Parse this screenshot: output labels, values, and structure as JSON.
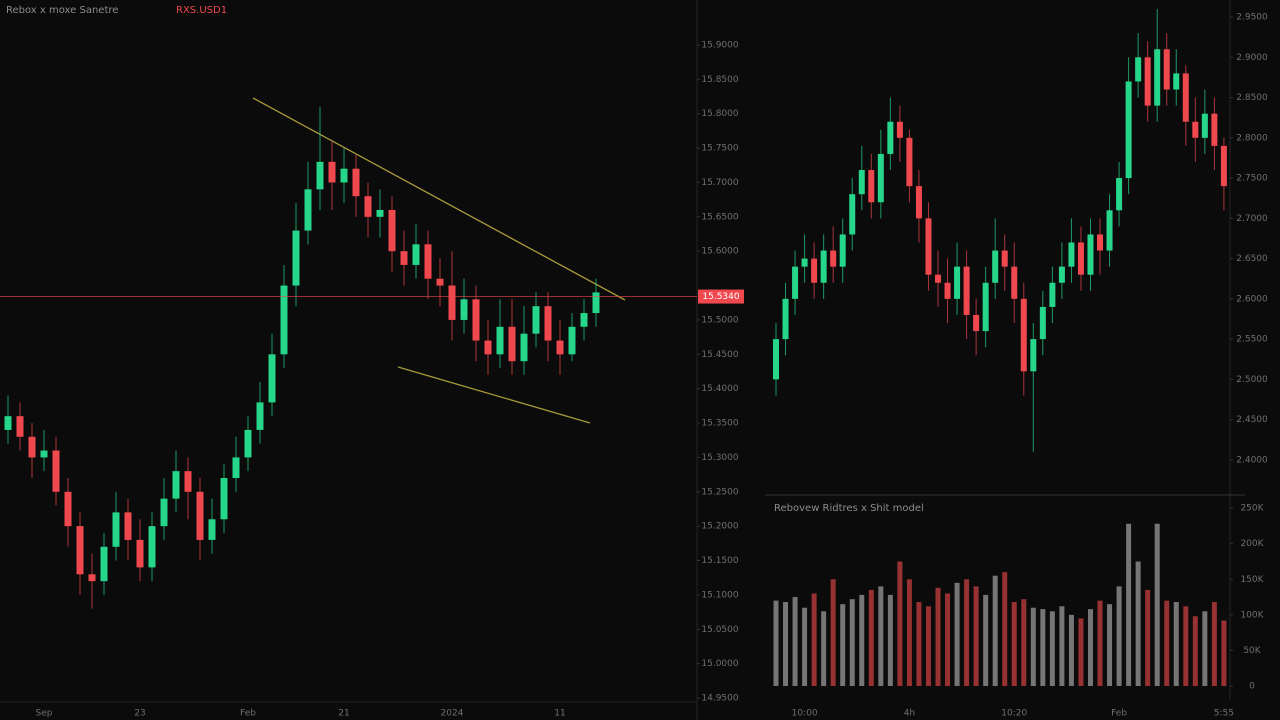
{
  "chart_data": [
    {
      "type": "candlestick",
      "title": "Rebox x moxe Sanetre",
      "symbol": "RXS.USD1",
      "up_color": "#26d68a",
      "down_color": "#f0484f",
      "grid": false,
      "categories": [
        null,
        null,
        null,
        "Sep",
        null,
        null,
        null,
        null,
        null,
        null,
        null,
        "23",
        null,
        null,
        null,
        null,
        null,
        null,
        null,
        null,
        "Feb",
        null,
        null,
        null,
        null,
        null,
        null,
        null,
        "21",
        null,
        null,
        null,
        null,
        null,
        null,
        null,
        null,
        "2024",
        null,
        null,
        null,
        null,
        null,
        null,
        null,
        null,
        "11",
        null,
        null,
        null
      ],
      "open": [
        15.34,
        15.36,
        15.33,
        15.3,
        15.31,
        15.25,
        15.2,
        15.13,
        15.12,
        15.17,
        15.22,
        15.18,
        15.14,
        15.2,
        15.24,
        15.28,
        15.25,
        15.18,
        15.21,
        15.27,
        15.3,
        15.34,
        15.38,
        15.45,
        15.55,
        15.63,
        15.69,
        15.73,
        15.7,
        15.72,
        15.68,
        15.65,
        15.66,
        15.6,
        15.58,
        15.61,
        15.56,
        15.55,
        15.5,
        15.53,
        15.47,
        15.45,
        15.49,
        15.44,
        15.48,
        15.52,
        15.47,
        15.45,
        15.49,
        15.51
      ],
      "high": [
        15.39,
        15.38,
        15.35,
        15.34,
        15.33,
        15.27,
        15.22,
        15.16,
        15.19,
        15.25,
        15.24,
        15.21,
        15.22,
        15.27,
        15.31,
        15.3,
        15.27,
        15.24,
        15.29,
        15.33,
        15.36,
        15.41,
        15.48,
        15.58,
        15.67,
        15.73,
        15.81,
        15.76,
        15.75,
        15.74,
        15.7,
        15.69,
        15.68,
        15.63,
        15.64,
        15.63,
        15.59,
        15.6,
        15.56,
        15.55,
        15.5,
        15.53,
        15.53,
        15.52,
        15.54,
        15.54,
        15.5,
        15.51,
        15.53,
        15.56
      ],
      "low": [
        15.32,
        15.31,
        15.27,
        15.28,
        15.23,
        15.17,
        15.1,
        15.08,
        15.1,
        15.15,
        15.15,
        15.12,
        15.12,
        15.18,
        15.22,
        15.21,
        15.15,
        15.16,
        15.19,
        15.25,
        15.28,
        15.32,
        15.36,
        15.43,
        15.52,
        15.61,
        15.66,
        15.66,
        15.67,
        15.65,
        15.62,
        15.62,
        15.57,
        15.55,
        15.56,
        15.53,
        15.52,
        15.47,
        15.48,
        15.44,
        15.42,
        15.43,
        15.42,
        15.42,
        15.46,
        15.44,
        15.42,
        15.44,
        15.47,
        15.49
      ],
      "close": [
        15.36,
        15.33,
        15.3,
        15.31,
        15.25,
        15.2,
        15.13,
        15.12,
        15.17,
        15.22,
        15.18,
        15.14,
        15.2,
        15.24,
        15.28,
        15.25,
        15.18,
        15.21,
        15.27,
        15.3,
        15.34,
        15.38,
        15.45,
        15.55,
        15.63,
        15.69,
        15.73,
        15.7,
        15.72,
        15.68,
        15.65,
        15.66,
        15.6,
        15.58,
        15.61,
        15.56,
        15.55,
        15.5,
        15.53,
        15.47,
        15.45,
        15.49,
        15.44,
        15.48,
        15.52,
        15.47,
        15.45,
        15.49,
        15.51,
        15.54
      ],
      "ylim": [
        14.95,
        15.95
      ],
      "yticks": [
        {
          "value": 15.9,
          "label": "15.9000"
        },
        {
          "value": 15.85,
          "label": "15.8500"
        },
        {
          "value": 15.8,
          "label": "15.8000"
        },
        {
          "value": 15.75,
          "label": "15.7500"
        },
        {
          "value": 15.7,
          "label": "15.7000"
        },
        {
          "value": 15.65,
          "label": "15.6500"
        },
        {
          "value": 15.6,
          "label": "15.6000"
        },
        {
          "value": 15.5,
          "label": "15.5000"
        },
        {
          "value": 15.45,
          "label": "15.4500"
        },
        {
          "value": 15.4,
          "label": "15.4000"
        },
        {
          "value": 15.35,
          "label": "15.3500"
        },
        {
          "value": 15.3,
          "label": "15.3000"
        },
        {
          "value": 15.25,
          "label": "15.2500"
        },
        {
          "value": 15.2,
          "label": "15.2000"
        },
        {
          "value": 15.15,
          "label": "15.1500"
        },
        {
          "value": 15.1,
          "label": "15.1000"
        },
        {
          "value": 15.05,
          "label": "15.0500"
        },
        {
          "value": 15.0,
          "label": "15.0000"
        },
        {
          "value": 14.95,
          "label": "14.9500"
        }
      ],
      "last_price": {
        "value": 15.534,
        "label": "15.5340"
      }
    },
    {
      "type": "candlestick",
      "up_color": "#26d68a",
      "down_color": "#f0484f",
      "grid": false,
      "categories": [
        null,
        null,
        null,
        "10:00",
        null,
        null,
        null,
        null,
        null,
        null,
        null,
        null,
        null,
        null,
        "4h",
        null,
        null,
        null,
        null,
        null,
        null,
        null,
        null,
        null,
        null,
        "10:20",
        null,
        null,
        null,
        null,
        null,
        null,
        null,
        null,
        null,
        null,
        "Feb",
        null,
        null,
        null,
        null,
        null,
        null,
        null,
        null,
        null,
        null,
        "5:55"
      ],
      "open": [
        2.5,
        2.55,
        2.6,
        2.64,
        2.65,
        2.62,
        2.66,
        2.64,
        2.68,
        2.73,
        2.76,
        2.72,
        2.78,
        2.82,
        2.8,
        2.74,
        2.7,
        2.63,
        2.62,
        2.6,
        2.64,
        2.58,
        2.56,
        2.62,
        2.66,
        2.64,
        2.6,
        2.51,
        2.55,
        2.59,
        2.62,
        2.64,
        2.67,
        2.63,
        2.68,
        2.66,
        2.71,
        2.75,
        2.87,
        2.9,
        2.84,
        2.91,
        2.86,
        2.88,
        2.82,
        2.8,
        2.83,
        2.79
      ],
      "high": [
        2.57,
        2.62,
        2.66,
        2.68,
        2.67,
        2.68,
        2.69,
        2.7,
        2.75,
        2.79,
        2.78,
        2.81,
        2.85,
        2.84,
        2.81,
        2.76,
        2.72,
        2.66,
        2.65,
        2.67,
        2.66,
        2.6,
        2.64,
        2.7,
        2.68,
        2.67,
        2.62,
        2.57,
        2.61,
        2.64,
        2.67,
        2.7,
        2.69,
        2.7,
        2.7,
        2.73,
        2.77,
        2.9,
        2.93,
        2.92,
        2.96,
        2.93,
        2.91,
        2.89,
        2.85,
        2.86,
        2.85,
        2.8
      ],
      "low": [
        2.48,
        2.53,
        2.58,
        2.62,
        2.6,
        2.6,
        2.62,
        2.62,
        2.66,
        2.71,
        2.7,
        2.7,
        2.76,
        2.77,
        2.72,
        2.67,
        2.61,
        2.59,
        2.57,
        2.58,
        2.55,
        2.53,
        2.54,
        2.6,
        2.61,
        2.57,
        2.48,
        2.41,
        2.53,
        2.57,
        2.6,
        2.62,
        2.61,
        2.61,
        2.63,
        2.64,
        2.69,
        2.73,
        2.85,
        2.82,
        2.82,
        2.84,
        2.84,
        2.79,
        2.77,
        2.78,
        2.76,
        2.71
      ],
      "close": [
        2.55,
        2.6,
        2.64,
        2.65,
        2.62,
        2.66,
        2.64,
        2.68,
        2.73,
        2.76,
        2.72,
        2.78,
        2.82,
        2.8,
        2.74,
        2.7,
        2.63,
        2.62,
        2.6,
        2.64,
        2.58,
        2.56,
        2.62,
        2.66,
        2.64,
        2.6,
        2.51,
        2.55,
        2.59,
        2.62,
        2.64,
        2.67,
        2.63,
        2.68,
        2.66,
        2.71,
        2.75,
        2.87,
        2.9,
        2.84,
        2.91,
        2.86,
        2.88,
        2.82,
        2.8,
        2.83,
        2.79,
        2.74
      ],
      "ylim": [
        2.38,
        2.96
      ],
      "yticks": [
        {
          "value": 2.95,
          "label": "2.9500"
        },
        {
          "value": 2.9,
          "label": "2.9000"
        },
        {
          "value": 2.85,
          "label": "2.8500"
        },
        {
          "value": 2.8,
          "label": "2.8000"
        },
        {
          "value": 2.75,
          "label": "2.7500"
        },
        {
          "value": 2.7,
          "label": "2.7000"
        },
        {
          "value": 2.65,
          "label": "2.6500"
        },
        {
          "value": 2.6,
          "label": "2.6000"
        },
        {
          "value": 2.55,
          "label": "2.5500"
        },
        {
          "value": 2.5,
          "label": "2.5000"
        },
        {
          "value": 2.45,
          "label": "2.4500"
        },
        {
          "value": 2.4,
          "label": "2.4000"
        }
      ]
    },
    {
      "type": "volume",
      "title": "Rebovew Ridtres x Shit model",
      "up_color": "#8a8a8a",
      "down_color": "#b13838",
      "values": [
        120000,
        118000,
        125000,
        110000,
        130000,
        105000,
        150000,
        115000,
        122000,
        128000,
        135000,
        140000,
        128000,
        175000,
        150000,
        118000,
        112000,
        138000,
        130000,
        145000,
        150000,
        140000,
        128000,
        155000,
        160000,
        118000,
        122000,
        110000,
        108000,
        105000,
        112000,
        100000,
        95000,
        108000,
        120000,
        115000,
        140000,
        228000,
        175000,
        135000,
        228000,
        120000,
        118000,
        112000,
        98000,
        105000,
        118000,
        92000
      ],
      "ylim": [
        0,
        260000
      ],
      "yticks": [
        {
          "value": 250000,
          "label": "250K"
        },
        {
          "value": 200000,
          "label": "200K"
        },
        {
          "value": 150000,
          "label": "150K"
        },
        {
          "value": 100000,
          "label": "100K"
        },
        {
          "value": 50000,
          "label": "50K"
        },
        0
      ]
    }
  ]
}
